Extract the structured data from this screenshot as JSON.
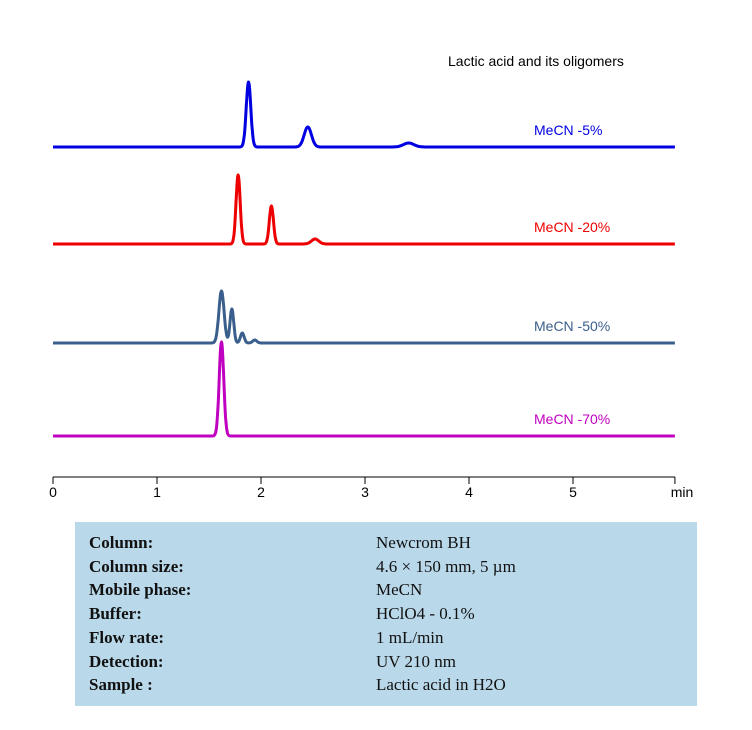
{
  "chart_data": {
    "type": "line",
    "title": "Lactic acid and its oligomers",
    "xlabel": "min",
    "xlim": [
      0,
      5.98
    ],
    "xticks": [
      "0",
      "1",
      "2",
      "3",
      "4",
      "5"
    ],
    "grid": false,
    "y_axis_shown": false,
    "series": [
      {
        "name": "MeCN -5%",
        "color": "#0000e0",
        "peaks": [
          {
            "rt": 1.88,
            "height": 65,
            "width": 0.022
          },
          {
            "rt": 2.45,
            "height": 20,
            "width": 0.035
          },
          {
            "rt": 3.42,
            "height": 4,
            "width": 0.05
          }
        ]
      },
      {
        "name": "MeCN -20%",
        "color": "#ee0000",
        "peaks": [
          {
            "rt": 1.78,
            "height": 69,
            "width": 0.02
          },
          {
            "rt": 2.1,
            "height": 38,
            "width": 0.02
          },
          {
            "rt": 2.52,
            "height": 5,
            "width": 0.035
          }
        ]
      },
      {
        "name": "MeCN -50%",
        "color": "#3b5f8c",
        "peaks": [
          {
            "rt": 1.62,
            "height": 52,
            "width": 0.025
          },
          {
            "rt": 1.72,
            "height": 34,
            "width": 0.018
          },
          {
            "rt": 1.82,
            "height": 10,
            "width": 0.018
          },
          {
            "rt": 1.94,
            "height": 3,
            "width": 0.02
          }
        ]
      },
      {
        "name": "MeCN -70%",
        "color": "#c000c0",
        "peaks": [
          {
            "rt": 1.62,
            "height": 94,
            "width": 0.022
          }
        ]
      }
    ]
  },
  "conditions": [
    {
      "label": "Column:",
      "value": "Newcrom BH"
    },
    {
      "label": "Column size:",
      "value": "4.6 × 150 mm, 5 µm"
    },
    {
      "label": "Mobile phase:",
      "value": "MeCN"
    },
    {
      "label": "Buffer:",
      "value": "HClO4 - 0.1%"
    },
    {
      "label": "Flow rate:",
      "value": "1 mL/min"
    },
    {
      "label": "Detection:",
      "value": "UV 210 nm"
    },
    {
      "label": "Sample :",
      "value": "Lactic acid in H2O"
    }
  ],
  "colors": {
    "info_background": "#b9d8ea"
  }
}
